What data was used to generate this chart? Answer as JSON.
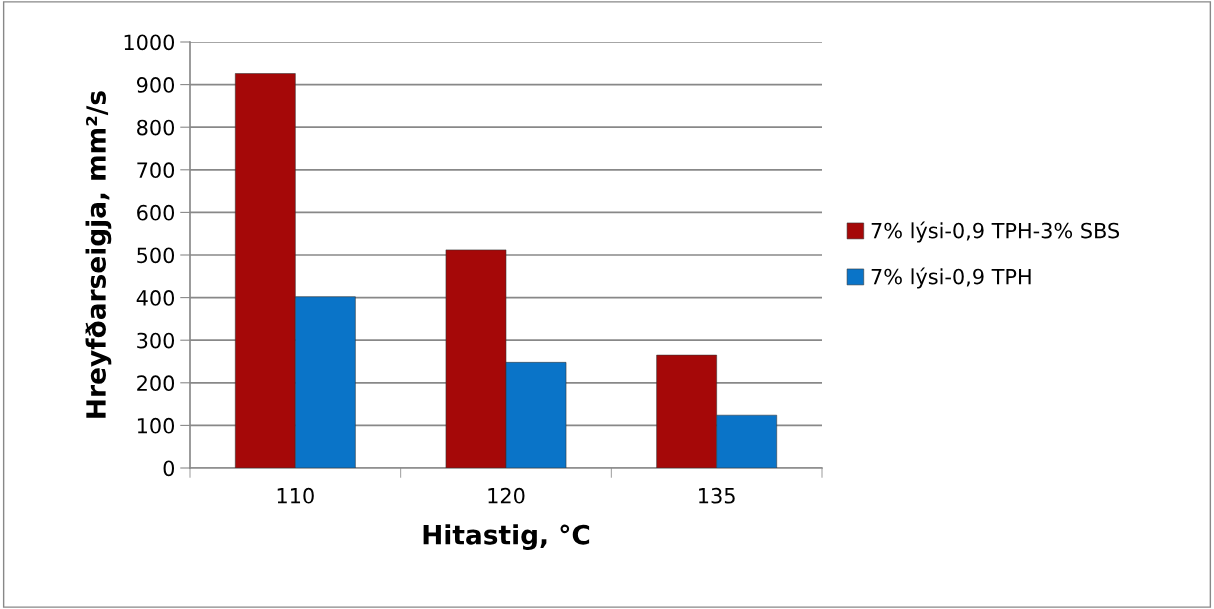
{
  "chart_data": {
    "type": "bar",
    "xlabel": "Hitastig, °C",
    "ylabel": "Hreyfðarseigja, mm²/s",
    "categories": [
      "110",
      "120",
      "135"
    ],
    "series": [
      {
        "name": "7% lýsi-0,9 TPH-3% SBS",
        "color": "#a50808",
        "values": [
          926,
          512,
          265
        ]
      },
      {
        "name": "7% lýsi-0,9 TPH",
        "color": "#0a74c8",
        "values": [
          402,
          248,
          124
        ]
      }
    ],
    "ylim": [
      0,
      1000
    ],
    "yticks": [
      0,
      100,
      200,
      300,
      400,
      500,
      600,
      700,
      800,
      900,
      1000
    ],
    "grid": "y",
    "legend": "right"
  }
}
